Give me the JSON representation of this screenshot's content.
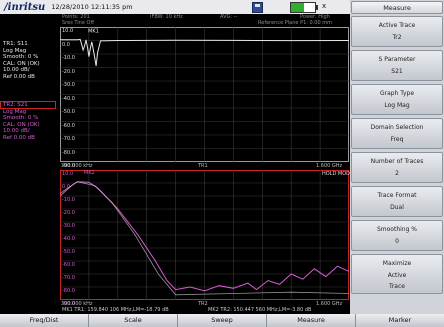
{
  "header": {
    "logo": "/inritsu",
    "datetime": "12/28/2010 12:11:35 pm",
    "battery_level": 0.55,
    "battery_suffix": "x"
  },
  "info_trace1": {
    "label": "TR1: S11",
    "format": "Log Mag",
    "smooth": "Smooth: 0 %",
    "cal": "CAL: ON (OK)",
    "scale": "10.00 dB/",
    "ref": "Ref 0.00 dB"
  },
  "info_trace2": {
    "label": "TR2: S21",
    "format": "Log Mag",
    "smooth": "Smooth: 0 %",
    "cal": "CAL: ON (OK)",
    "scale": "10.00 dB/",
    "ref": "Ref 0.00 dB"
  },
  "status_header": {
    "port_line": "Points: 201",
    "sweep_line": "Sres Tine Off",
    "ifbw": "IFBW: 10 kHz",
    "avg": "AVG: --",
    "power": "Power: High",
    "ref_plane": "Reference Plane P1: 0.00 mm"
  },
  "plot1": {
    "ticks": [
      "10.0",
      "0.0",
      "-10.0",
      "-20.0",
      "-30.0",
      "-40.0",
      "-50.0",
      "-60.0",
      "-70.0",
      "-80.0",
      "-90.0"
    ],
    "x_start": "300.000 kHz",
    "x_label": "TR1",
    "x_stop": "1.600 GHz",
    "marker_label": "MK1"
  },
  "plot2": {
    "ticks": [
      "10.0",
      "0.0",
      "-10.0",
      "-20.0",
      "-30.0",
      "-40.0",
      "-50.0",
      "-60.0",
      "-70.0",
      "-80.0",
      "-90.0"
    ],
    "x_start": "300.000 kHz",
    "x_label": "TR2",
    "x_stop": "1.600 GHz",
    "hold_mode": "HOLD MODE",
    "marker_label": "MK2",
    "marker_readout": "MK1 TR1: 159.840 106 MHz,LM=-18.79 dB",
    "marker_readout2": "MK2 TR2: 150.447 560 MHz,LM=-3.80 dB"
  },
  "softkeys": {
    "menu_title": "Measure",
    "items": [
      {
        "label": "Active Trace",
        "value": "Tr2"
      },
      {
        "label": "S Parameter",
        "value": "S21"
      },
      {
        "label": "Graph Type",
        "value": "Log Mag"
      },
      {
        "label": "Domain Selection",
        "value": "Freq"
      },
      {
        "label": "Number of Traces",
        "value": "2"
      },
      {
        "label": "Trace Format",
        "value": "Dual"
      },
      {
        "label": "Smoothing %",
        "value": "0"
      },
      {
        "label": "Maximize",
        "value": "Active",
        "value2": "Trace"
      }
    ]
  },
  "bottom_menu": [
    "Freq/Dist",
    "Scale",
    "Sweep",
    "Measure",
    "Marker"
  ],
  "colors": {
    "trace1": "#e8e8e8",
    "trace2": "#d85bd2",
    "active_border": "#cc2222",
    "grid": "#3a3a3a"
  }
}
